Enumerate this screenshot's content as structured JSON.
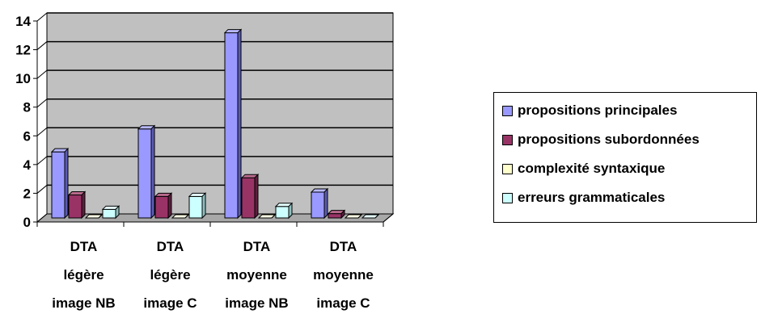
{
  "chart_data": {
    "type": "bar",
    "categories": [
      [
        "DTA",
        "légère",
        "image NB"
      ],
      [
        "DTA",
        "légère",
        "image C"
      ],
      [
        "DTA",
        "moyenne",
        "image NB"
      ],
      [
        "DTA",
        "moyenne",
        "image C"
      ]
    ],
    "series": [
      {
        "name": "propositions principales",
        "values": [
          4.6,
          6.2,
          12.9,
          1.8
        ],
        "color": "#9999ff",
        "top": "#b8b8ff",
        "side": "#5c5cb3"
      },
      {
        "name": "propositions subordonnées",
        "values": [
          1.6,
          1.5,
          2.8,
          0.3
        ],
        "color": "#993366",
        "top": "#b86a8c",
        "side": "#5c1f3d"
      },
      {
        "name": "complexité syntaxique",
        "values": [
          0,
          0,
          0,
          0
        ],
        "color": "#ffffcc",
        "top": "#ffffe6",
        "side": "#cccc99"
      },
      {
        "name": "erreurs grammaticales",
        "values": [
          0.6,
          1.5,
          0.8,
          0
        ],
        "color": "#ccffff",
        "top": "#e6ffff",
        "side": "#8fbfbf"
      }
    ],
    "ylim": [
      0,
      14
    ],
    "yticks": [
      "0",
      "2",
      "4",
      "6",
      "8",
      "10",
      "12",
      "14"
    ],
    "grid": true,
    "legend_position": "right",
    "plot_background": "#c0c0c0",
    "three_d": true
  }
}
